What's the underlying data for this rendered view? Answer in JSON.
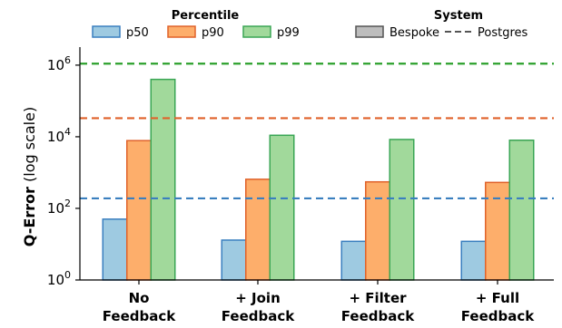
{
  "chart_data": {
    "type": "bar",
    "categories": [
      "No Feedback",
      "+ Join Feedback",
      "+ Filter Feedback",
      "+ Full Feedback"
    ],
    "category_lines": [
      [
        "No",
        "Feedback"
      ],
      [
        "+ Join",
        "Feedback"
      ],
      [
        "+ Filter",
        "Feedback"
      ],
      [
        "+ Full",
        "Feedback"
      ]
    ],
    "series": [
      {
        "name": "p50",
        "values": [
          50,
          13,
          12,
          12
        ],
        "color": "#9ecae1",
        "edge": "#3a7fbf"
      },
      {
        "name": "p90",
        "values": [
          7800,
          650,
          550,
          530
        ],
        "color": "#fdae6b",
        "edge": "#e0622a"
      },
      {
        "name": "p99",
        "values": [
          400000,
          11000,
          8400,
          8000
        ],
        "color": "#a1d99b",
        "edge": "#3aa655"
      }
    ],
    "reference_lines": [
      {
        "name": "p50",
        "value": 190,
        "color": "#3a7fbf"
      },
      {
        "name": "p90",
        "value": 33000,
        "color": "#e0622a"
      },
      {
        "name": "p99",
        "value": 1100000,
        "color": "#2ca02c"
      }
    ],
    "ylabel_bold": "Q-Error",
    "ylabel_rest": " (log scale)",
    "yscale": "log",
    "ylim": [
      1,
      2000000
    ],
    "yticks": [
      1,
      100,
      10000,
      1000000
    ],
    "legend": {
      "placement": "top",
      "groups": [
        {
          "title": "Percentile",
          "entries": [
            "p50",
            "p90",
            "p99"
          ]
        },
        {
          "title": "System",
          "entries": [
            "Bespoke",
            "Postgres"
          ]
        }
      ]
    },
    "grid": false
  }
}
